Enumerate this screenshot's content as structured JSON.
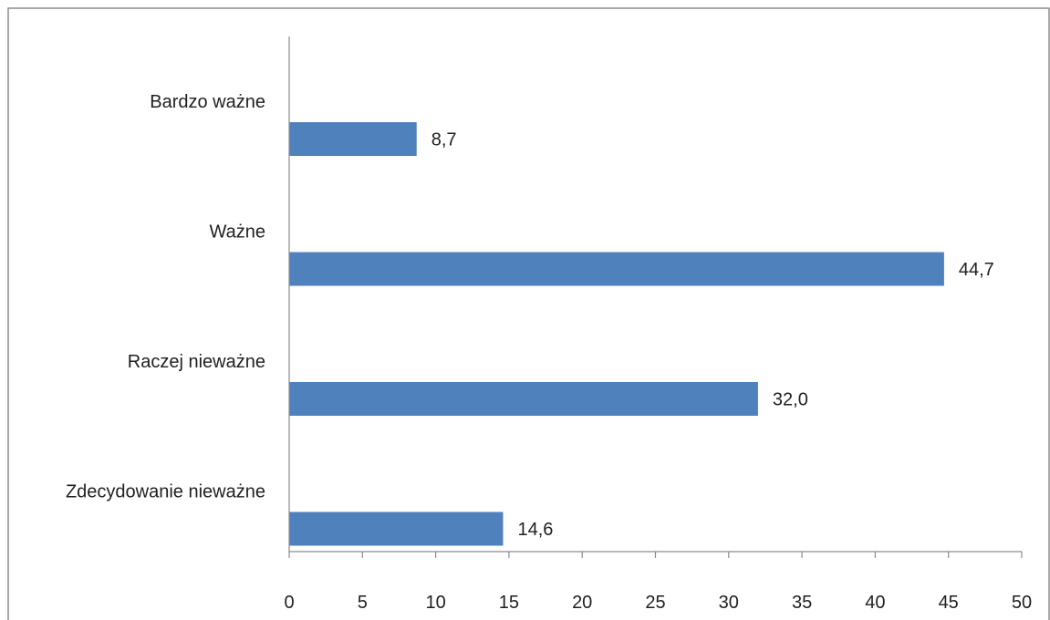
{
  "chart_data": {
    "type": "bar",
    "orientation": "horizontal",
    "title": "",
    "xlabel": "",
    "ylabel": "",
    "categories": [
      "Bardzo ważne",
      "Ważne",
      "Raczej nieważne",
      "Zdecydowanie nieważne"
    ],
    "values": [
      8.7,
      44.7,
      32.0,
      14.6
    ],
    "data_labels": [
      "8,7",
      "44,7",
      "32,0",
      "14,6"
    ],
    "xlim": [
      0,
      50
    ],
    "x_ticks": [
      0,
      5,
      10,
      15,
      20,
      25,
      30,
      35,
      40,
      45,
      50
    ],
    "x_tick_labels": [
      "0",
      "5",
      "10",
      "15",
      "20",
      "25",
      "30",
      "35",
      "40",
      "45",
      "50"
    ],
    "grid": false,
    "legend": "none",
    "bar_color": "#4f81bd"
  }
}
